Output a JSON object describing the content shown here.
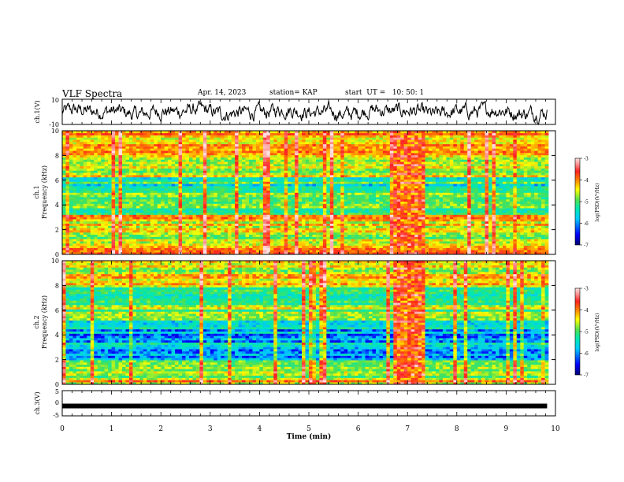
{
  "header": {
    "title": "VLF Spectra",
    "date": "Apr. 14, 2023",
    "station": "station= KAP",
    "start_ut": "start  UT =   10: 50: 1"
  },
  "colors": {
    "spectrum_scale": [
      "#000070",
      "#0000ff",
      "#00c8ff",
      "#00e8b0",
      "#50e050",
      "#ffff00",
      "#ff8000",
      "#ff2020",
      "#ff9090",
      "#ffe0e0"
    ]
  },
  "chart_data": [
    {
      "type": "line",
      "name": "ch1-waveform",
      "ylabel": "ch.1(V)",
      "xlim": [
        0,
        10
      ],
      "ylim": [
        -10,
        10
      ],
      "yticks": [
        "10",
        "-10"
      ],
      "data_end_min": 9.83,
      "mean": 0,
      "amplitude_approx": 5
    },
    {
      "type": "heatmap",
      "name": "ch1-spectrogram",
      "ylabel_channel": "ch.1",
      "ylabel": "Frequency (kHz)",
      "xlim": [
        0,
        10
      ],
      "ylim": [
        0,
        10
      ],
      "yticks": [
        "0",
        "2",
        "4",
        "6",
        "8",
        "10"
      ],
      "colorbar": {
        "label": "log(PSD)(V²/Hz)",
        "range": [
          -7,
          -3
        ],
        "ticks": [
          "-3",
          "-4",
          "-5",
          "-6",
          "-7"
        ]
      },
      "burst_interval_min": [
        6.75,
        7.35
      ],
      "band_levels_by_freq": [
        {
          "f": [
            0,
            0.6
          ],
          "level": -4.2
        },
        {
          "f": [
            0.6,
            2.0
          ],
          "level": -4.9
        },
        {
          "f": [
            2.0,
            3.2
          ],
          "level": -4.6
        },
        {
          "f": [
            3.2,
            4.0
          ],
          "level": -5.4
        },
        {
          "f": [
            4.0,
            5.0
          ],
          "level": -5.3
        },
        {
          "f": [
            5.0,
            6.3
          ],
          "level": -5.6
        },
        {
          "f": [
            6.3,
            8.0
          ],
          "level": -5.0
        },
        {
          "f": [
            8.0,
            10.0
          ],
          "level": -4.5
        }
      ]
    },
    {
      "type": "heatmap",
      "name": "ch2-spectrogram",
      "ylabel_channel": "ch.2",
      "ylabel": "Frequency (kHz)",
      "xlim": [
        0,
        10
      ],
      "ylim": [
        0,
        10
      ],
      "yticks": [
        "0",
        "2",
        "4",
        "6",
        "8",
        "10"
      ],
      "colorbar": {
        "label": "log(PSD)(V²/Hz)",
        "range": [
          -7,
          -3
        ],
        "ticks": [
          "-3",
          "-4",
          "-5",
          "-6",
          "-7"
        ]
      },
      "burst_interval_min": [
        6.75,
        7.35
      ],
      "band_levels_by_freq": [
        {
          "f": [
            0,
            0.6
          ],
          "level": -4.6
        },
        {
          "f": [
            0.6,
            2.0
          ],
          "level": -5.3
        },
        {
          "f": [
            2.0,
            3.4
          ],
          "level": -5.9
        },
        {
          "f": [
            3.4,
            5.2
          ],
          "level": -6.0
        },
        {
          "f": [
            5.2,
            6.5
          ],
          "level": -5.1
        },
        {
          "f": [
            6.5,
            8.0
          ],
          "level": -5.3
        },
        {
          "f": [
            8.0,
            10.0
          ],
          "level": -4.8
        }
      ]
    },
    {
      "type": "line",
      "name": "ch3-level",
      "ylabel": "ch.3(V)",
      "xlim": [
        0,
        10
      ],
      "ylim": [
        -5,
        5
      ],
      "yticks": [
        "5",
        "0",
        "-5"
      ],
      "value": -1.1,
      "data_end_min": 9.83
    }
  ],
  "xaxis": {
    "label": "Time (min)",
    "ticks": [
      "0",
      "1",
      "2",
      "3",
      "4",
      "5",
      "6",
      "7",
      "8",
      "9",
      "10"
    ]
  }
}
